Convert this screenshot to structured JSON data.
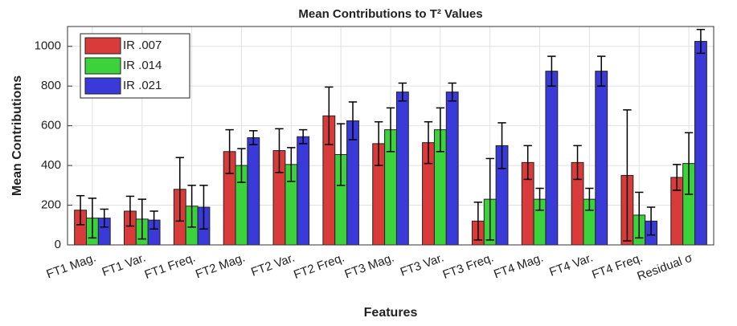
{
  "chart_data": {
    "type": "bar",
    "title": "Mean Contributions to T² Values",
    "x_label": "Features",
    "y_label": "Mean Contributions",
    "categories": [
      "FT1 Mag.",
      "FT1 Var.",
      "FT1 Freq.",
      "FT2 Mag.",
      "FT2 Var.",
      "FT2 Freq.",
      "FT3 Mag.",
      "FT3 Var.",
      "FT3 Freq.",
      "FT4 Mag.",
      "FT4 Var.",
      "FT4 Freq.",
      "Residual σ"
    ],
    "series": [
      {
        "name": "IR .007",
        "color": "#d93a3a",
        "values": [
          175,
          170,
          280,
          470,
          475,
          650,
          510,
          515,
          120,
          415,
          415,
          350,
          340
        ],
        "errors": [
          73,
          75,
          160,
          110,
          110,
          145,
          110,
          105,
          95,
          85,
          85,
          330,
          65
        ]
      },
      {
        "name": "IR .014",
        "color": "#3cd23c",
        "values": [
          135,
          130,
          195,
          400,
          405,
          455,
          580,
          580,
          230,
          230,
          230,
          150,
          410
        ],
        "errors": [
          100,
          100,
          105,
          85,
          85,
          155,
          110,
          110,
          205,
          55,
          55,
          115,
          155
        ]
      },
      {
        "name": "IR .021",
        "color": "#3a3ad9",
        "values": [
          135,
          125,
          190,
          540,
          545,
          625,
          770,
          770,
          500,
          875,
          875,
          120,
          1025
        ],
        "errors": [
          45,
          45,
          110,
          35,
          35,
          95,
          45,
          45,
          115,
          75,
          75,
          70,
          60
        ]
      }
    ],
    "ylim": [
      0,
      1100
    ],
    "yticks": [
      0,
      200,
      400,
      600,
      800,
      1000
    ],
    "grid": true,
    "legend": "top-left"
  }
}
